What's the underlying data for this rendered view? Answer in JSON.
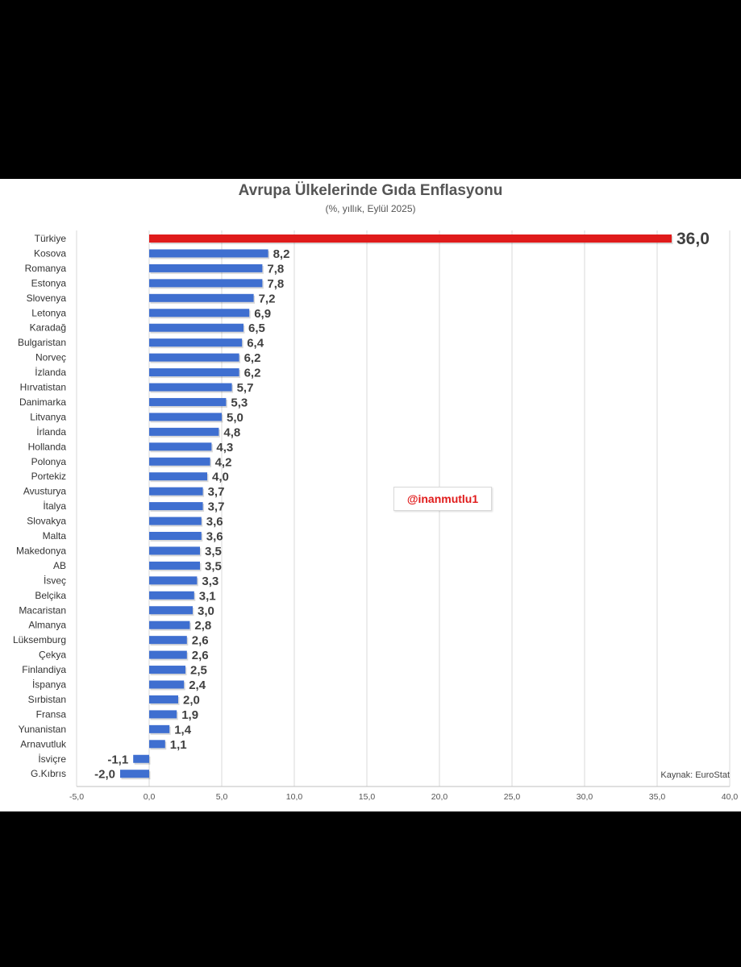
{
  "chart_data": {
    "type": "bar",
    "orientation": "horizontal",
    "title": "Avrupa Ülkelerinde Gıda Enflasyonu",
    "subtitle": "(%, yıllık, Eylül 2025)",
    "xlabel": "",
    "ylabel": "",
    "xlim": [
      -5,
      40
    ],
    "x_ticks": [
      "-5,0",
      "0,0",
      "5,0",
      "10,0",
      "15,0",
      "20,0",
      "25,0",
      "30,0",
      "35,0",
      "40,0"
    ],
    "x_tick_values": [
      -5,
      0,
      5,
      10,
      15,
      20,
      25,
      30,
      35,
      40
    ],
    "grid": true,
    "categories": [
      "Türkiye",
      "Kosova",
      "Romanya",
      "Estonya",
      "Slovenya",
      "Letonya",
      "Karadağ",
      "Bulgaristan",
      "Norveç",
      "İzlanda",
      "Hırvatistan",
      "Danimarka",
      "Litvanya",
      "İrlanda",
      "Hollanda",
      "Polonya",
      "Portekiz",
      "Avusturya",
      "İtalya",
      "Slovakya",
      "Malta",
      "Makedonya",
      "AB",
      "İsveç",
      "Belçika",
      "Macaristan",
      "Almanya",
      "Lüksemburg",
      "Çekya",
      "Finlandiya",
      "İspanya",
      "Sırbistan",
      "Fransa",
      "Yunanistan",
      "Arnavutluk",
      "İsviçre",
      "G.Kıbrıs"
    ],
    "values": [
      36.0,
      8.2,
      7.8,
      7.8,
      7.2,
      6.9,
      6.5,
      6.4,
      6.2,
      6.2,
      5.7,
      5.3,
      5.0,
      4.8,
      4.3,
      4.2,
      4.0,
      3.7,
      3.7,
      3.6,
      3.6,
      3.5,
      3.5,
      3.3,
      3.1,
      3.0,
      2.8,
      2.6,
      2.6,
      2.5,
      2.4,
      2.0,
      1.9,
      1.4,
      1.1,
      -1.1,
      -2.0
    ],
    "value_labels": [
      "36,0",
      "8,2",
      "7,8",
      "7,8",
      "7,2",
      "6,9",
      "6,5",
      "6,4",
      "6,2",
      "6,2",
      "5,7",
      "5,3",
      "5,0",
      "4,8",
      "4,3",
      "4,2",
      "4,0",
      "3,7",
      "3,7",
      "3,6",
      "3,6",
      "3,5",
      "3,5",
      "3,3",
      "3,1",
      "3,0",
      "2,8",
      "2,6",
      "2,6",
      "2,5",
      "2,4",
      "2,0",
      "1,9",
      "1,4",
      "1,1",
      "-1,1",
      "-2,0"
    ],
    "highlight": {
      "Türkiye": "#e01b1b",
      "AB": "#3b6fc4"
    },
    "colors": {
      "bar": "#3f6fd0",
      "highlight_bar": "#e01b1b",
      "grid": "#d9d9d9",
      "label": "#404040",
      "eu_label": "#3b6fc4"
    },
    "watermark": "@inanmutlu1",
    "source": "Kaynak: EuroStat"
  }
}
